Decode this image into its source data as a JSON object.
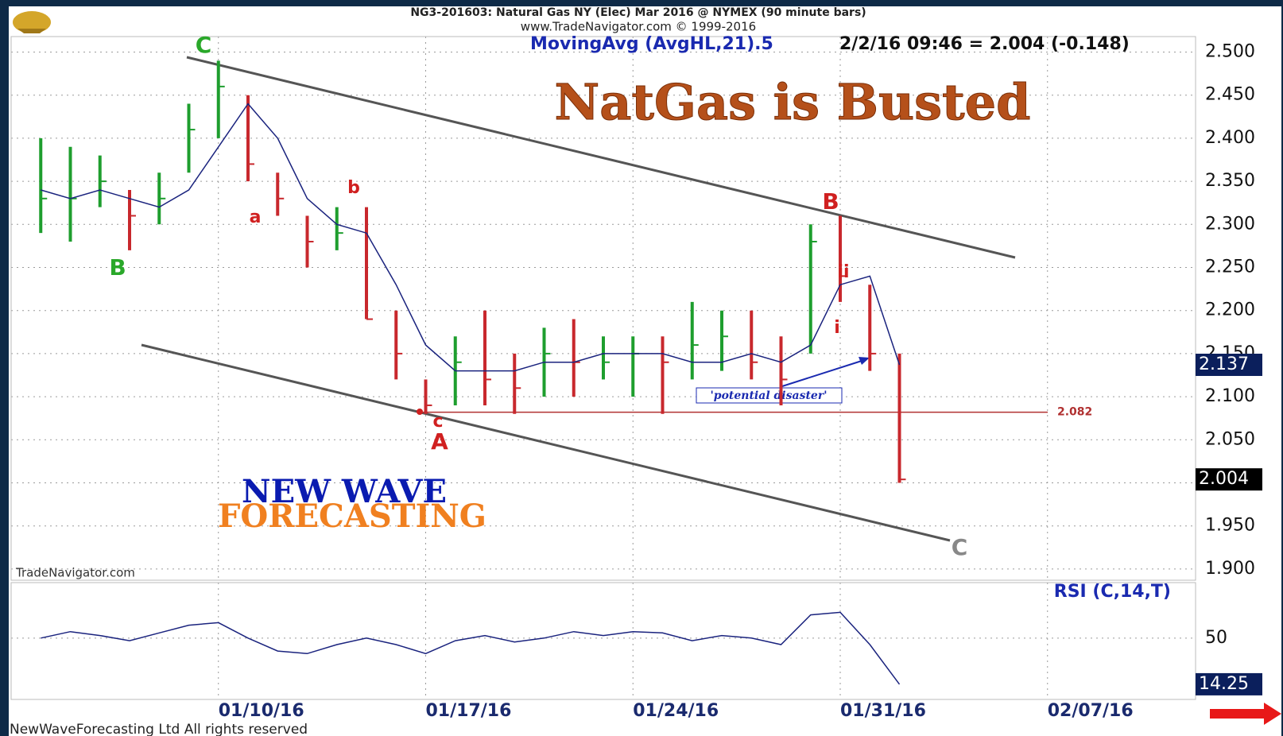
{
  "title": "NG3-201603:  Natural Gas NY (Elec) Mar 2016 @ NYMEX  (90 minute bars)",
  "subtitle": "www.TradeNavigator.com © 1999-2016",
  "footer": "NewWaveForecasting Ltd All rights reserved",
  "chart_data": [
    {
      "type": "ohlc",
      "readout": "2/2/16 09:46 = 2.004 (-0.148)",
      "headline": "NatGas is Busted",
      "brand": [
        "NEW WAVE",
        "FORECASTING"
      ],
      "source": "TradeNavigator.com",
      "callout": "'potential disaster'",
      "waves": [
        "C",
        "B",
        "a",
        "b",
        "c",
        "A",
        "B",
        "ii",
        "i",
        "C"
      ],
      "x": [
        "01/04/16",
        "01/05/16",
        "01/06/16",
        "01/07/16",
        "01/08/16",
        "01/09/16",
        "01/10/16",
        "01/11/16",
        "01/12/16",
        "01/13/16",
        "01/14/16",
        "01/15/16",
        "01/16/16",
        "01/17/16",
        "01/18/16",
        "01/19/16",
        "01/20/16",
        "01/21/16",
        "01/22/16",
        "01/23/16",
        "01/24/16",
        "01/25/16",
        "01/26/16",
        "01/27/16",
        "01/28/16",
        "01/29/16",
        "01/30/16",
        "01/31/16",
        "02/01/16",
        "02/02/16"
      ],
      "high": [
        2.4,
        2.39,
        2.38,
        2.34,
        2.36,
        2.44,
        2.49,
        2.45,
        2.36,
        2.31,
        2.32,
        2.32,
        2.2,
        2.12,
        2.17,
        2.2,
        2.15,
        2.18,
        2.19,
        2.17,
        2.17,
        2.17,
        2.21,
        2.2,
        2.2,
        2.17,
        2.3,
        2.31,
        2.23,
        2.15
      ],
      "low": [
        2.29,
        2.28,
        2.32,
        2.27,
        2.3,
        2.36,
        2.4,
        2.35,
        2.31,
        2.25,
        2.27,
        2.19,
        2.12,
        2.08,
        2.09,
        2.09,
        2.08,
        2.1,
        2.1,
        2.12,
        2.1,
        2.08,
        2.12,
        2.13,
        2.12,
        2.09,
        2.15,
        2.21,
        2.13,
        2.0
      ],
      "close": [
        2.33,
        2.33,
        2.35,
        2.31,
        2.33,
        2.41,
        2.46,
        2.37,
        2.33,
        2.28,
        2.29,
        2.19,
        2.15,
        2.09,
        2.14,
        2.12,
        2.11,
        2.15,
        2.14,
        2.14,
        2.15,
        2.14,
        2.16,
        2.17,
        2.14,
        2.12,
        2.28,
        2.24,
        2.15,
        2.004
      ],
      "up_color": "#1e9e2e",
      "down_color": "#c8282d",
      "ma": {
        "name": "MovingAvg (AvgHL,21).5",
        "color": "#1a237e",
        "values": [
          2.34,
          2.33,
          2.34,
          2.33,
          2.32,
          2.34,
          2.39,
          2.44,
          2.4,
          2.33,
          2.3,
          2.29,
          2.23,
          2.16,
          2.13,
          2.13,
          2.13,
          2.14,
          2.14,
          2.15,
          2.15,
          2.15,
          2.14,
          2.14,
          2.15,
          2.14,
          2.16,
          2.23,
          2.24,
          2.137
        ]
      },
      "hline": 2.082,
      "ylim": [
        1.887,
        2.518
      ],
      "yticks": [
        {
          "value": 1.9,
          "label": "1.900"
        },
        {
          "value": 1.95,
          "label": "1.950"
        },
        {
          "value": 2.0,
          "label": "2.000"
        },
        {
          "value": 2.05,
          "label": "2.050"
        },
        {
          "value": 2.1,
          "label": "2.100"
        },
        {
          "value": 2.15,
          "label": "2.150"
        },
        {
          "value": 2.2,
          "label": "2.200"
        },
        {
          "value": 2.25,
          "label": "2.250"
        },
        {
          "value": 2.3,
          "label": "2.300"
        },
        {
          "value": 2.35,
          "label": "2.350"
        },
        {
          "value": 2.4,
          "label": "2.400"
        },
        {
          "value": 2.45,
          "label": "2.450"
        },
        {
          "value": 2.5,
          "label": "2.500"
        }
      ],
      "grid": true
    },
    {
      "type": "line",
      "title": "RSI (C,14,T)",
      "color": "#1a237e",
      "values": [
        50,
        55,
        52,
        48,
        54,
        60,
        62,
        50,
        40,
        38,
        45,
        50,
        45,
        38,
        48,
        52,
        47,
        50,
        55,
        52,
        55,
        54,
        48,
        52,
        50,
        45,
        68,
        70,
        45,
        14.25
      ],
      "ylim": [
        2.5,
        93
      ],
      "yticks": [
        50
      ],
      "xlim": [
        "01/03/16",
        "02/12/16"
      ],
      "xticks": [
        "01/10/16",
        "01/17/16",
        "01/24/16",
        "01/31/16",
        "02/07/16"
      ],
      "grid": true
    }
  ]
}
